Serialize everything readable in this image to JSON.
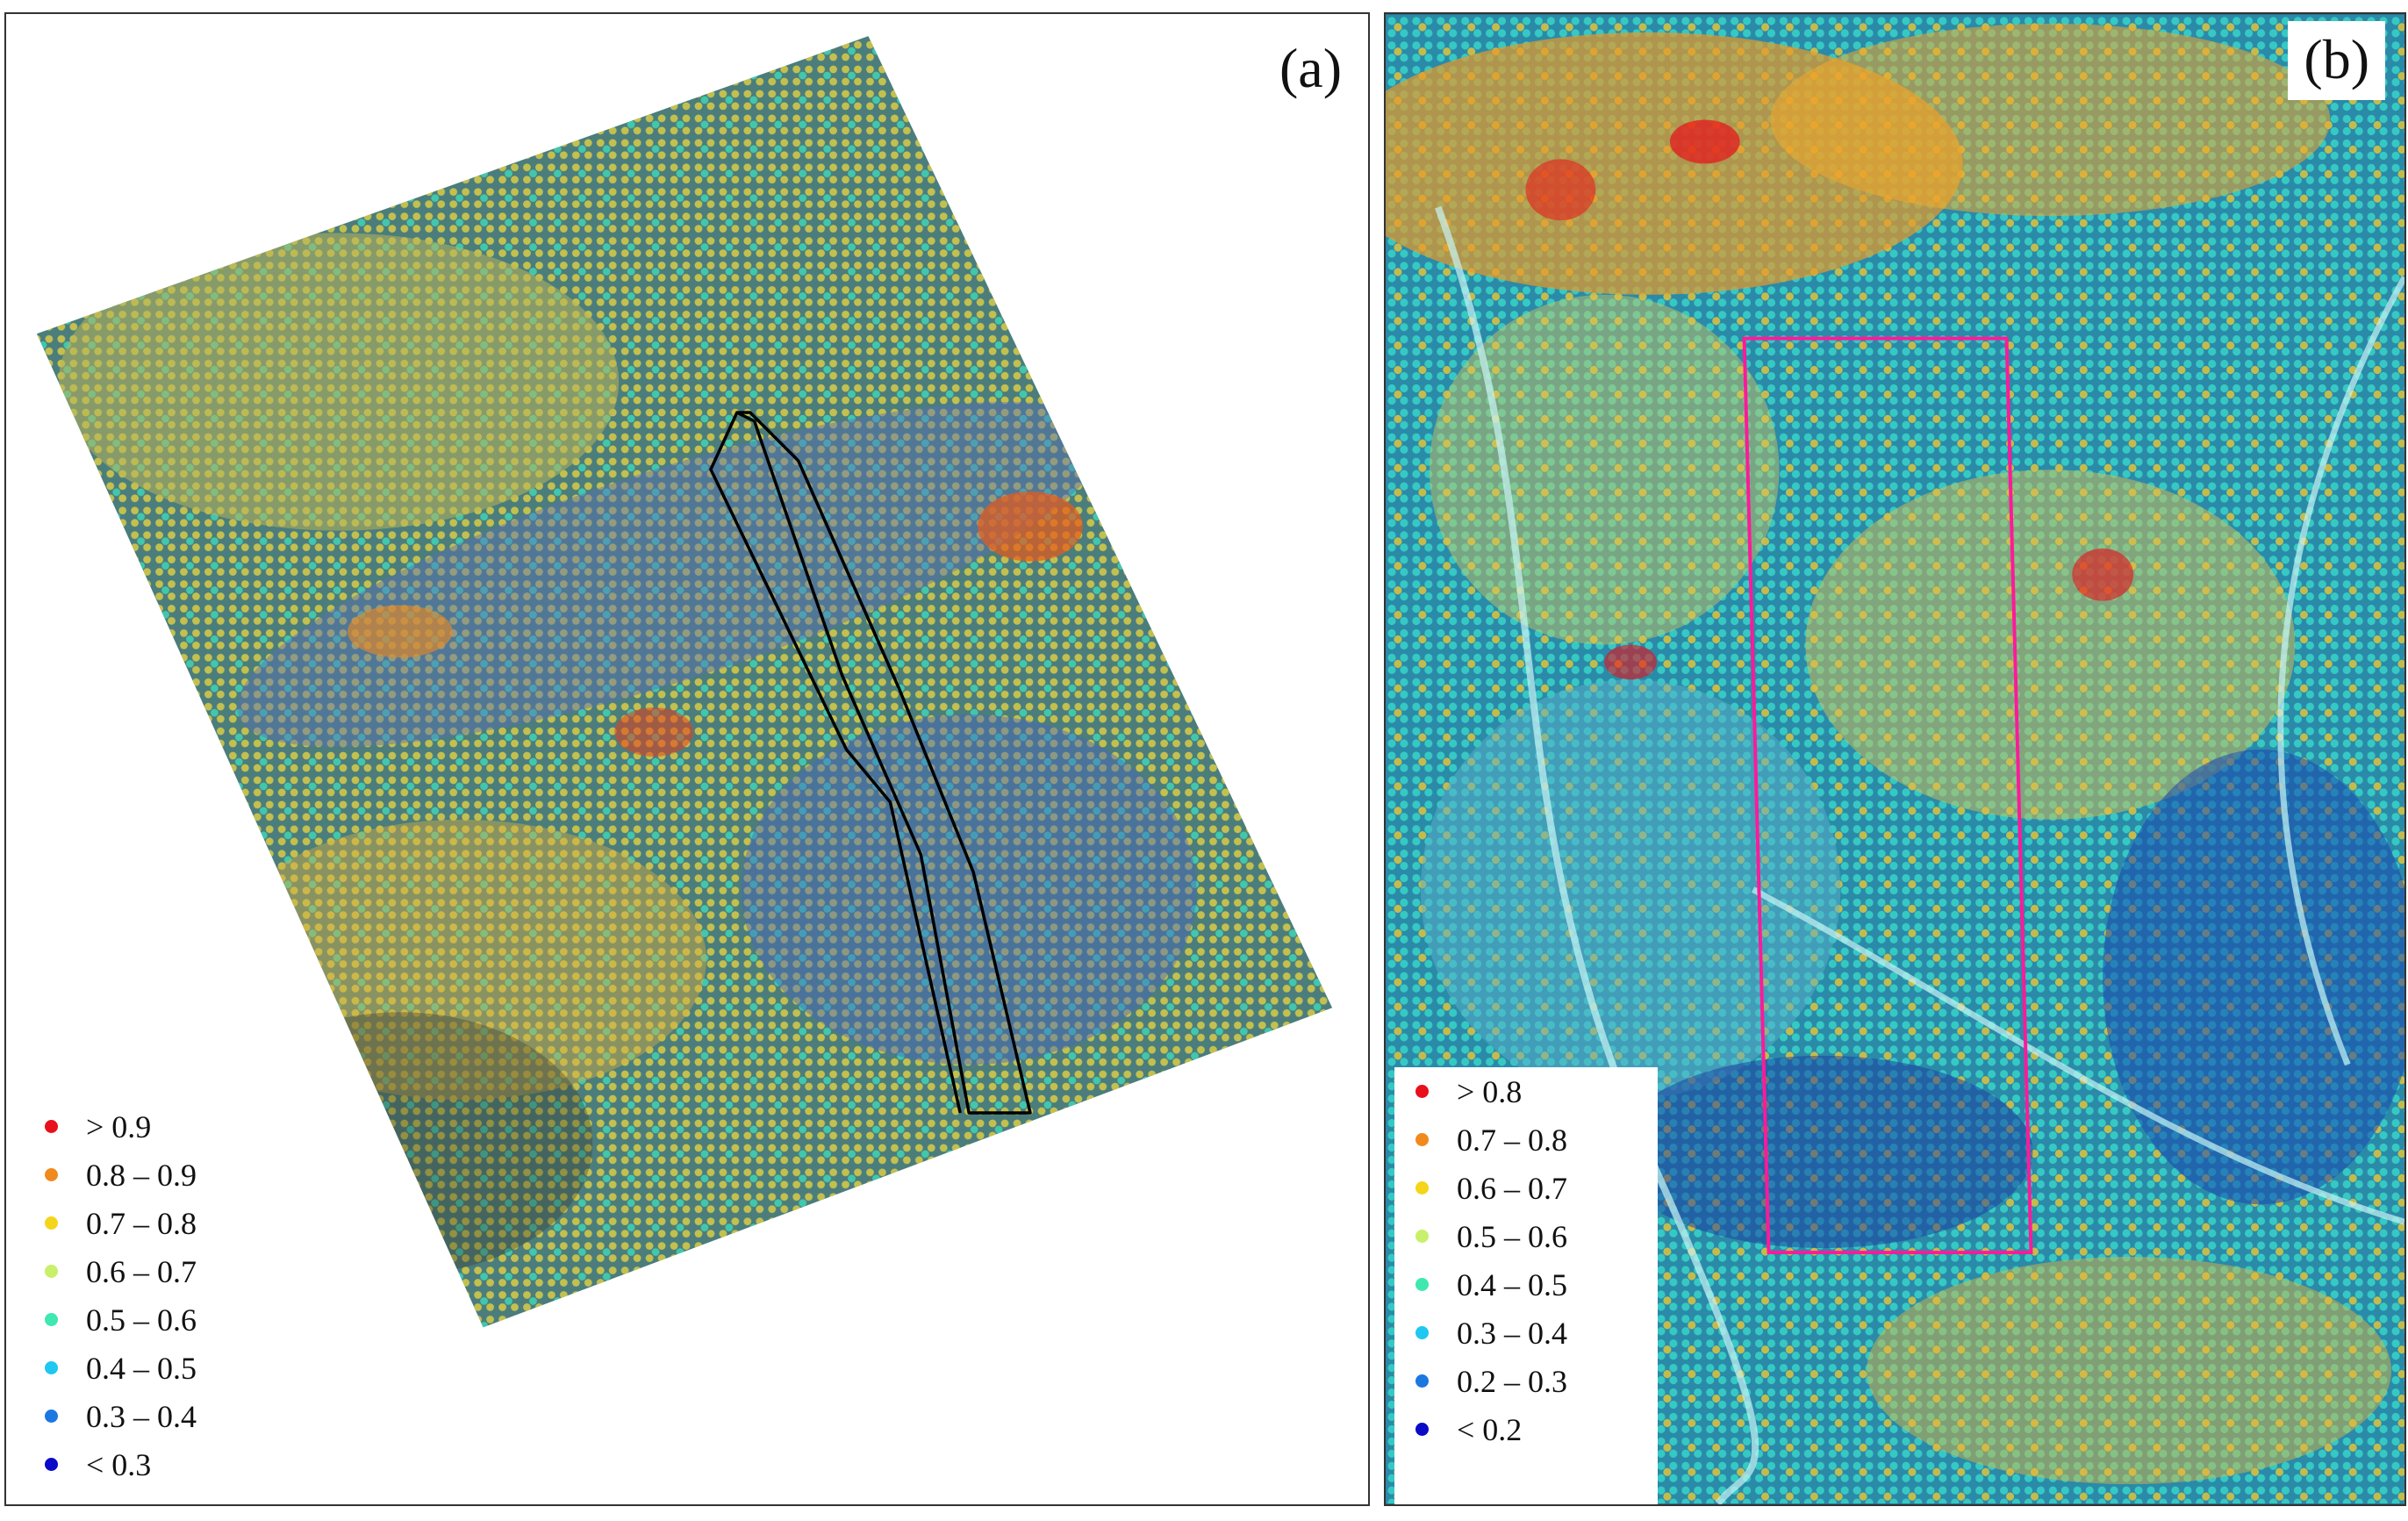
{
  "panels": {
    "a": {
      "label": "(a)",
      "legend": [
        {
          "label": "> 0.9",
          "color": "#e8101a"
        },
        {
          "label": "0.8 – 0.9",
          "color": "#f08a1c"
        },
        {
          "label": "0.7 – 0.8",
          "color": "#f5d51a"
        },
        {
          "label": "0.6 – 0.7",
          "color": "#c8f06a"
        },
        {
          "label": "0.5 – 0.6",
          "color": "#3ee8b0"
        },
        {
          "label": "0.4 – 0.5",
          "color": "#1ec8f0"
        },
        {
          "label": "0.3 – 0.4",
          "color": "#1a78e0"
        },
        {
          "label": "< 0.3",
          "color": "#0a0ac8"
        }
      ],
      "outline_color": "#000000"
    },
    "b": {
      "label": "(b)",
      "legend": [
        {
          "label": "> 0.8",
          "color": "#e8101a"
        },
        {
          "label": "0.7 – 0.8",
          "color": "#f08a1c"
        },
        {
          "label": "0.6 – 0.7",
          "color": "#f5d51a"
        },
        {
          "label": "0.5 – 0.6",
          "color": "#c8f06a"
        },
        {
          "label": "0.4 – 0.5",
          "color": "#3ee8b0"
        },
        {
          "label": "0.3 – 0.4",
          "color": "#1ec8f0"
        },
        {
          "label": "0.2 – 0.3",
          "color": "#1a78e0"
        },
        {
          "label": "< 0.2",
          "color": "#0a0ac8"
        }
      ],
      "outline_color": "#ff1a9a"
    }
  }
}
